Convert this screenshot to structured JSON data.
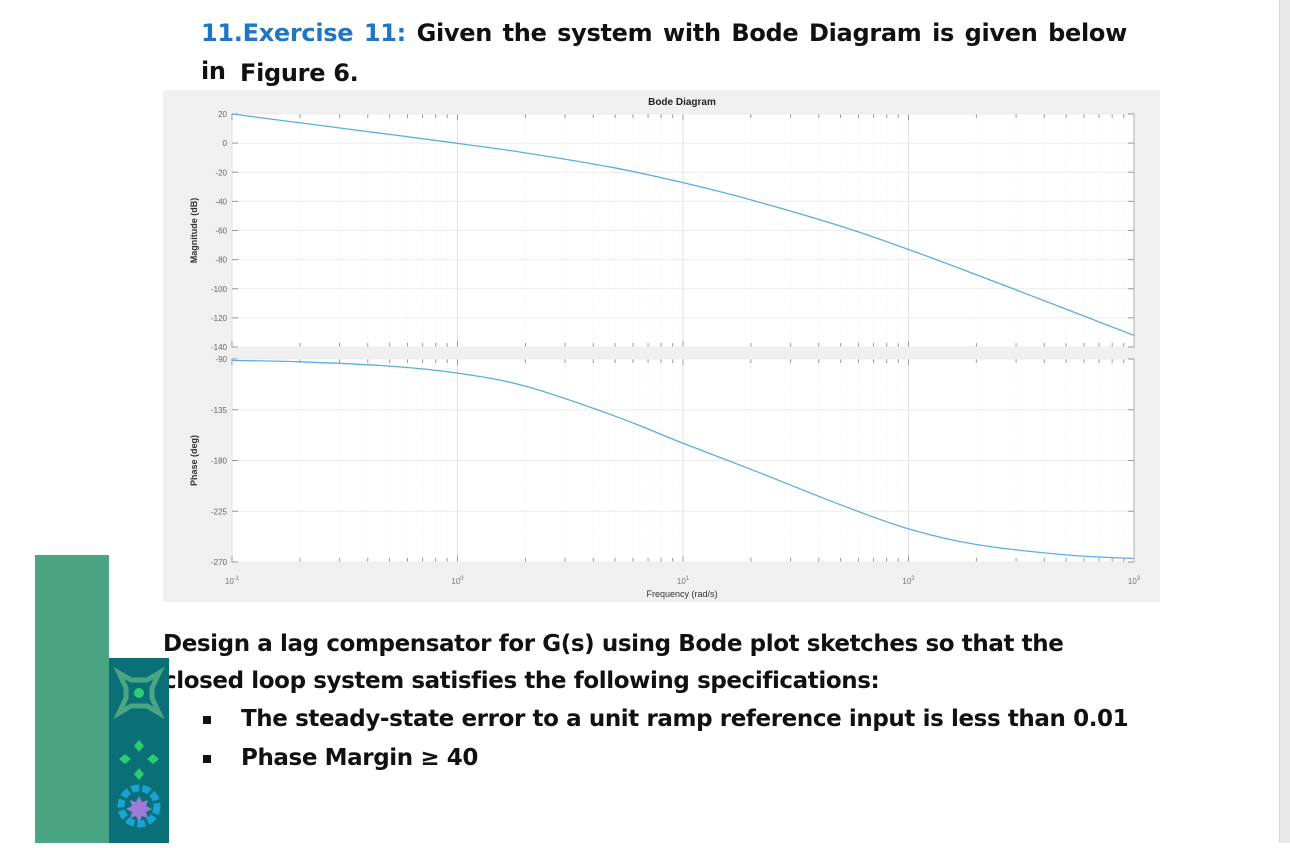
{
  "heading": {
    "number": "11.",
    "exercise": "Exercise 11:",
    "text": "Given the system with Bode Diagram is given below in",
    "line2": "Figure 6."
  },
  "paragraph": "Design a lag compensator for G(s) using Bode plot sketches so that the closed loop system satisfies the following specifications:",
  "bullets": [
    "The steady-state error to a unit ramp reference input is less than 0.01",
    "Phase Margin ≥ 40"
  ],
  "colors": {
    "heading_accent": "#1f77c4",
    "curve": "#5aaee0",
    "deco_green": "#4aa583",
    "deco_teal": "#0b6f78"
  },
  "chart_data": {
    "type": "line",
    "title": "Bode Diagram",
    "xlabel": "Frequency  (rad/s)",
    "xscale": "log",
    "xlim": [
      0.1,
      1000
    ],
    "x_ticks": [
      {
        "base": "10",
        "exp": "-1"
      },
      {
        "base": "10",
        "exp": "0"
      },
      {
        "base": "10",
        "exp": "1"
      },
      {
        "base": "10",
        "exp": "2"
      },
      {
        "base": "10",
        "exp": "3"
      }
    ],
    "grid": true,
    "x": [
      0.1,
      0.2,
      0.5,
      1,
      2,
      5,
      10,
      20,
      50,
      100,
      200,
      500,
      1000
    ],
    "panels": [
      {
        "ylabel": "Magnitude (dB)",
        "ylim": [
          -140,
          20
        ],
        "y_ticks": [
          20,
          0,
          -20,
          -40,
          -60,
          -80,
          -100,
          -120,
          -140
        ],
        "values": [
          20.0,
          13.97,
          5.98,
          -0.17,
          -6.67,
          -17.03,
          -27.16,
          -38.97,
          -57.03,
          -73.02,
          -90.36,
          -114.02,
          -132.05
        ]
      },
      {
        "ylabel": "Phase (deg)",
        "ylim": [
          -270,
          -90
        ],
        "y_ticks": [
          -90,
          -135,
          -180,
          -225,
          -270
        ],
        "values": [
          -91.3,
          -92.5,
          -96.3,
          -102.5,
          -114.1,
          -140.7,
          -164.7,
          -187.8,
          -219.3,
          -240.6,
          -254.5,
          -263.7,
          -266.9
        ]
      }
    ]
  }
}
